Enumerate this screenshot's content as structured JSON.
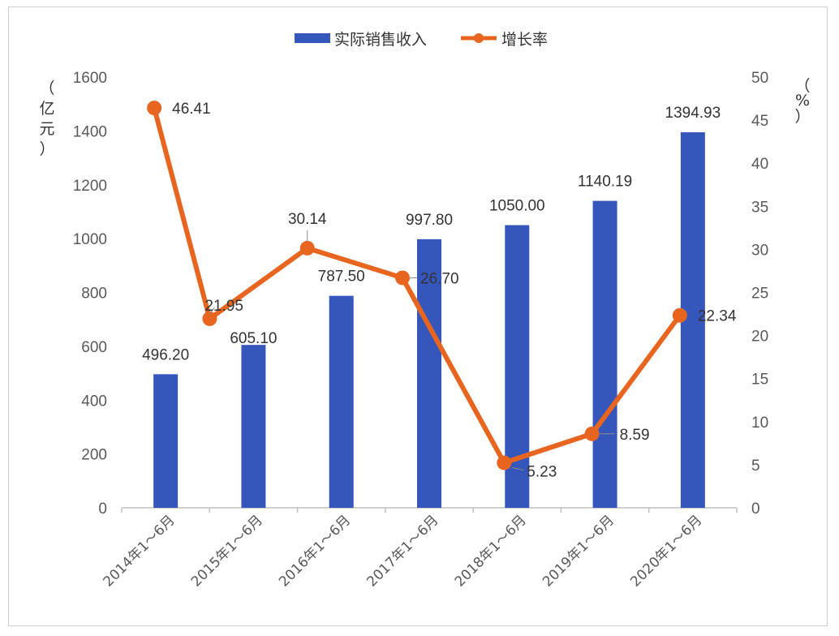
{
  "chart_data": {
    "type": "bar+line",
    "categories": [
      "2014年1～6月",
      "2015年1～6月",
      "2016年1～6月",
      "2017年1～6月",
      "2018年1～6月",
      "2019年1～6月",
      "2020年1～6月"
    ],
    "series": [
      {
        "name": "实际销售收入",
        "type": "bar",
        "axis": "left",
        "values": [
          496.2,
          605.1,
          787.5,
          997.8,
          1050.0,
          1140.19,
          1394.93
        ],
        "labels": [
          "496.20",
          "605.10",
          "787.50",
          "997.80",
          "1050.00",
          "1140.19",
          "1394.93"
        ],
        "color": "#3557BC"
      },
      {
        "name": "增长率",
        "type": "line",
        "axis": "right",
        "values": [
          46.41,
          21.95,
          30.14,
          26.7,
          5.23,
          8.59,
          22.34
        ],
        "labels": [
          "46.41",
          "21.95",
          "30.14",
          "26.70",
          "5.23",
          "8.59",
          "22.34"
        ],
        "color": "#E8651F"
      }
    ],
    "y_left": {
      "unit_label": [
        "（",
        "亿",
        "元",
        "）"
      ],
      "ylim": [
        0,
        1600
      ],
      "ticks": [
        "0",
        "200",
        "400",
        "600",
        "800",
        "1000",
        "1200",
        "1400",
        "1600"
      ]
    },
    "y_right": {
      "unit_label": [
        "（",
        "%",
        "）"
      ],
      "ylim": [
        0,
        50
      ],
      "ticks": [
        "0",
        "5",
        "10",
        "15",
        "20",
        "25",
        "30",
        "35",
        "40",
        "45",
        "50"
      ]
    },
    "grid": false,
    "legend_position": "top-center"
  }
}
